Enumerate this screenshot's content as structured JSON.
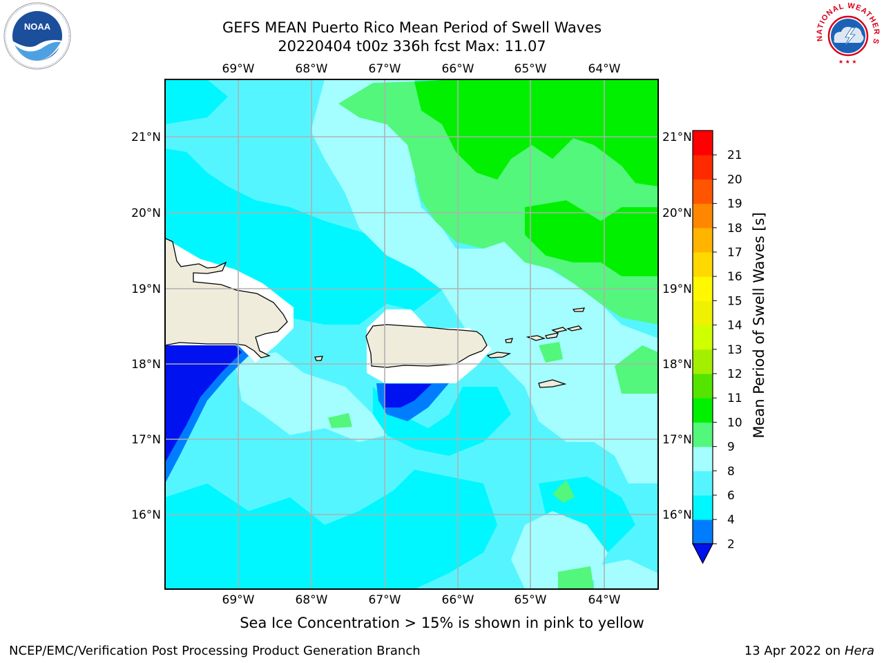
{
  "title": {
    "line1": "GEFS MEAN Puerto Rico Mean Period of Swell Waves",
    "line2": "20220404 t00z 336h fcst   Max: 11.07"
  },
  "map": {
    "lon_labels": [
      "69°W",
      "68°W",
      "67°W",
      "66°W",
      "65°W",
      "64°W"
    ],
    "lat_labels": [
      "21°N",
      "20°N",
      "19°N",
      "18°N",
      "17°N",
      "16°N"
    ],
    "field": "Mean Period of Swell Waves",
    "islands": [
      "Hispaniola",
      "Puerto Rico",
      "Virgin Islands"
    ]
  },
  "colorbar": {
    "label": "Mean Period of Swell Waves [s]",
    "ticks": [
      "2",
      "4",
      "6",
      "8",
      "9",
      "10",
      "11",
      "12",
      "13",
      "14",
      "15",
      "16",
      "17",
      "18",
      "19",
      "20",
      "21"
    ],
    "colors": [
      "#0012f0",
      "#007dff",
      "#00f7ff",
      "#55f5ff",
      "#a4feff",
      "#52f77b",
      "#00f000",
      "#54e400",
      "#a4ef00",
      "#cfff00",
      "#eef200",
      "#fff800",
      "#ffd800",
      "#ffb400",
      "#ff8700",
      "#ff5500",
      "#ff2a00",
      "#ff0000"
    ]
  },
  "caption": "Sea Ice Concentration > 15% is shown in pink to yellow",
  "footer": {
    "credit": "NCEP/EMC/Verification Post Processing Product Generation Branch",
    "date_prefix": "13 Apr 2022 on ",
    "machine": "Hera"
  },
  "logos": {
    "noaa_text": "NOAA",
    "nws_text": "NATIONAL WEATHER SERVICE",
    "colors": {
      "noaa_blue": "#1b4e9b",
      "nws_red": "#d6001c",
      "nws_blue": "#1b62b7"
    }
  }
}
